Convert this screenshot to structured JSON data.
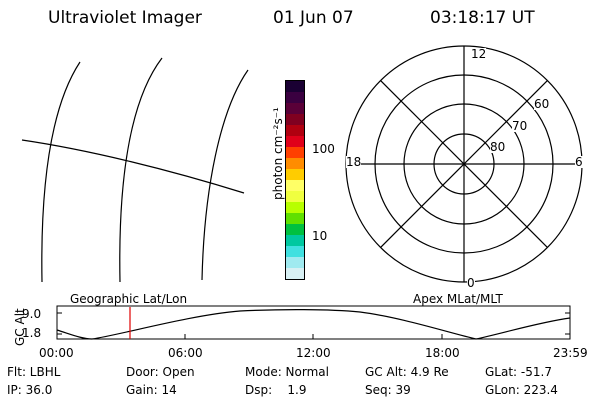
{
  "header": {
    "title": "Ultraviolet Imager",
    "date": "01 Jun 07",
    "time": "03:18:17 UT"
  },
  "colorbar": {
    "unit_label": "photon cm⁻²s⁻¹",
    "ticks": [
      "100",
      "10"
    ],
    "colors": [
      "#1a0033",
      "#3a0040",
      "#5a0038",
      "#800020",
      "#b00010",
      "#e0001a",
      "#ff4000",
      "#ff8c00",
      "#ffcc00",
      "#ffff66",
      "#f0ff40",
      "#b8ff00",
      "#60e000",
      "#00c040",
      "#00c8a0",
      "#40e0e0",
      "#a0eaf0",
      "#d8f0f4"
    ]
  },
  "polar": {
    "mlt_labels": {
      "top": "12",
      "left": "18",
      "right": "6",
      "bottom": "0"
    },
    "lat_labels": [
      "60",
      "70",
      "80"
    ]
  },
  "strip": {
    "left_label": "Geographic Lat/Lon",
    "right_label": "Apex MLat/MLT",
    "y_axis_label": "GC Alt",
    "y_ticks": [
      "9.0",
      "1.8"
    ],
    "x_ticks": [
      "00:00",
      "06:00",
      "12:00",
      "18:00",
      "23:59"
    ]
  },
  "info": {
    "flt": "Flt: LBHL",
    "door": "Door: Open",
    "mode": "Mode: Normal",
    "gc_alt": "GC Alt: 4.9 Re",
    "glat": "GLat: -51.7",
    "ip": "IP: 36.0",
    "gain": "Gain: 14",
    "dsp": "Dsp:    1.9",
    "seq": "Seq: 39",
    "glon": "GLon: 223.4"
  }
}
